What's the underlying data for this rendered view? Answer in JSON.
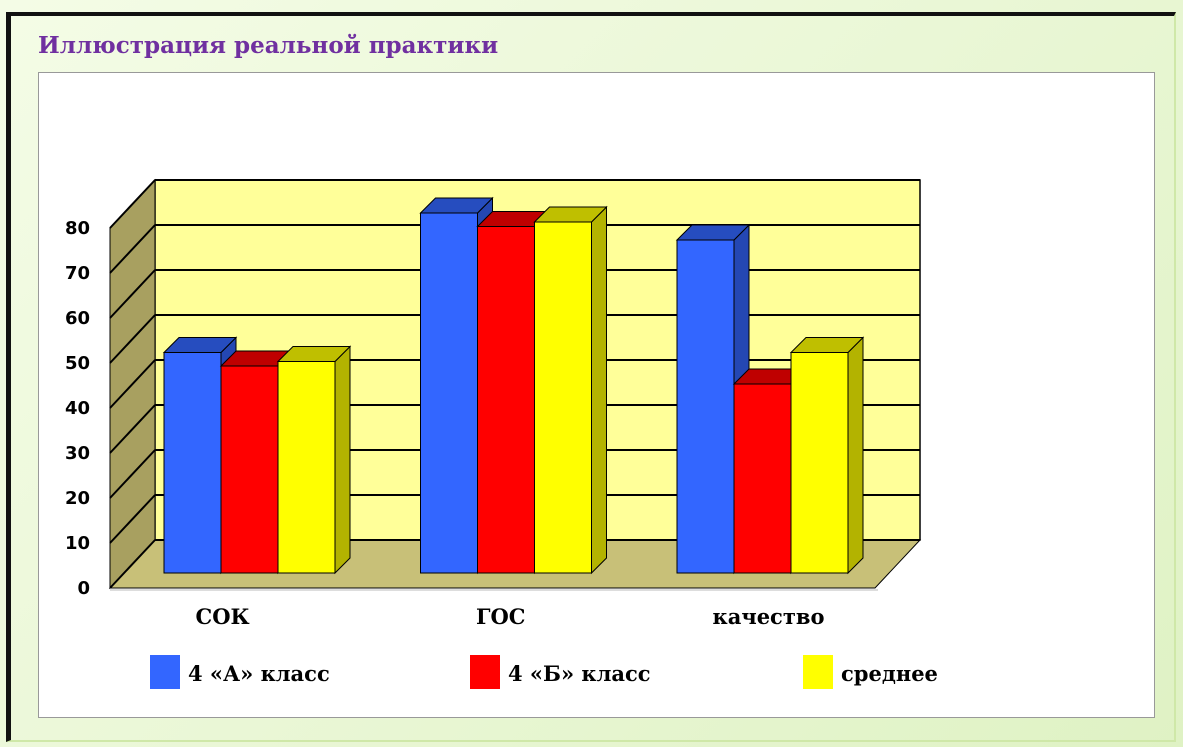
{
  "chart_data": {
    "type": "bar3d",
    "title": "Иллюстрация реальной практики",
    "categories": [
      "СОК",
      "ГОС",
      "качество"
    ],
    "series": [
      {
        "name": "4 «А» класс",
        "color": "#3366ff",
        "values": [
          49,
          80,
          74
        ]
      },
      {
        "name": "4 «Б» класс",
        "color": "#ff0000",
        "values": [
          46,
          77,
          42
        ]
      },
      {
        "name": "среднее",
        "color": "#ffff00",
        "values": [
          47,
          78,
          49
        ]
      }
    ],
    "ylim": [
      0,
      80
    ],
    "yticks": [
      0,
      10,
      20,
      30,
      40,
      50,
      60,
      70,
      80
    ],
    "grid": true,
    "legend": "bottom"
  }
}
